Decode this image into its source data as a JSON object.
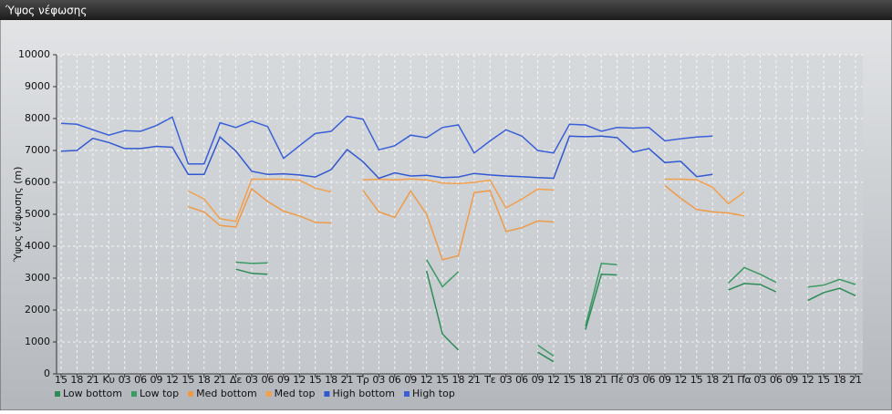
{
  "window_title": "Ύψος νέφωσης",
  "chart_data": {
    "type": "line",
    "y_label": "Ύψος νέφωσης (m)",
    "categories": [
      "15",
      "18",
      "21",
      "Κυ",
      "03",
      "06",
      "09",
      "12",
      "15",
      "18",
      "21",
      "Δε",
      "03",
      "06",
      "09",
      "12",
      "15",
      "18",
      "21",
      "Τρ",
      "03",
      "06",
      "09",
      "12",
      "15",
      "18",
      "21",
      "Τε",
      "03",
      "06",
      "09",
      "12",
      "15",
      "18",
      "21",
      "Πέ",
      "03",
      "06",
      "09",
      "12",
      "15",
      "18",
      "21",
      "Πα",
      "03",
      "06",
      "09",
      "12",
      "15",
      "18",
      "21"
    ],
    "ylim": [
      0,
      10000
    ],
    "yticks": [
      0,
      1000,
      2000,
      3000,
      4000,
      5000,
      6000,
      7000,
      8000,
      9000,
      10000
    ],
    "grid": true,
    "legend": "bottom-left",
    "series": [
      {
        "name": "Low bottom",
        "color": "#2e8b57",
        "values": [
          null,
          null,
          null,
          null,
          null,
          null,
          null,
          null,
          null,
          null,
          null,
          3280,
          3150,
          3120,
          null,
          null,
          null,
          null,
          null,
          null,
          null,
          null,
          null,
          3230,
          1250,
          750,
          null,
          null,
          null,
          null,
          680,
          380,
          null,
          1380,
          3120,
          3100,
          null,
          null,
          null,
          null,
          null,
          null,
          2630,
          2830,
          2800,
          2570,
          null,
          2300,
          2550,
          2680,
          2450
        ]
      },
      {
        "name": "Low top",
        "color": "#3a9a62",
        "values": [
          null,
          null,
          null,
          null,
          null,
          null,
          null,
          null,
          null,
          null,
          null,
          3500,
          3460,
          3480,
          null,
          null,
          null,
          null,
          null,
          null,
          null,
          null,
          null,
          3580,
          2730,
          3200,
          null,
          null,
          null,
          null,
          900,
          560,
          null,
          1500,
          3460,
          3420,
          null,
          null,
          null,
          null,
          null,
          null,
          2850,
          3330,
          3120,
          2870,
          null,
          2720,
          2780,
          2960,
          2800
        ]
      },
      {
        "name": "Med bottom",
        "color": "#ee9a48",
        "values": [
          null,
          null,
          null,
          null,
          null,
          null,
          null,
          null,
          5240,
          5070,
          4650,
          4600,
          5800,
          5400,
          5100,
          4950,
          4750,
          4730,
          null,
          5750,
          5080,
          4900,
          5730,
          5000,
          3580,
          3700,
          5680,
          5740,
          4460,
          4580,
          4790,
          4760,
          null,
          null,
          null,
          null,
          null,
          null,
          5900,
          5500,
          5150,
          5080,
          5040,
          4950,
          null,
          null,
          null,
          null,
          null,
          null,
          null
        ]
      },
      {
        "name": "Med top",
        "color": "#f2a04e",
        "values": [
          null,
          null,
          null,
          null,
          null,
          null,
          null,
          null,
          5730,
          5480,
          4860,
          4780,
          6100,
          6100,
          6100,
          6070,
          5820,
          5700,
          null,
          6080,
          6100,
          6080,
          6110,
          6080,
          5980,
          5960,
          6000,
          6070,
          5200,
          5480,
          5790,
          5760,
          null,
          null,
          null,
          null,
          null,
          null,
          6100,
          6100,
          6080,
          5850,
          5330,
          5700,
          null,
          null,
          null,
          null,
          null,
          null,
          null
        ]
      },
      {
        "name": "High bottom",
        "color": "#3158d0",
        "values": [
          6980,
          7000,
          7380,
          7250,
          7060,
          7060,
          7130,
          7100,
          6250,
          6250,
          7420,
          6980,
          6350,
          6250,
          6270,
          6230,
          6170,
          6400,
          7030,
          6650,
          6130,
          6300,
          6200,
          6220,
          6150,
          6170,
          6280,
          6230,
          6200,
          6180,
          6150,
          6130,
          7450,
          7430,
          7450,
          7400,
          6950,
          7060,
          6620,
          6660,
          6180,
          6250,
          null,
          null,
          null,
          null,
          null,
          null,
          null,
          null,
          null
        ]
      },
      {
        "name": "High top",
        "color": "#3a5fd8",
        "values": [
          7850,
          7820,
          7650,
          7480,
          7620,
          7600,
          7780,
          8050,
          6580,
          6580,
          7870,
          7720,
          7920,
          7750,
          6750,
          7150,
          7530,
          7600,
          8070,
          7980,
          7020,
          7150,
          7480,
          7400,
          7720,
          7800,
          6920,
          7300,
          7650,
          7450,
          7000,
          6920,
          7820,
          7800,
          7600,
          7720,
          7700,
          7720,
          7300,
          7370,
          7420,
          7450,
          null,
          null,
          null,
          null,
          null,
          null,
          null,
          null,
          null
        ]
      }
    ]
  }
}
